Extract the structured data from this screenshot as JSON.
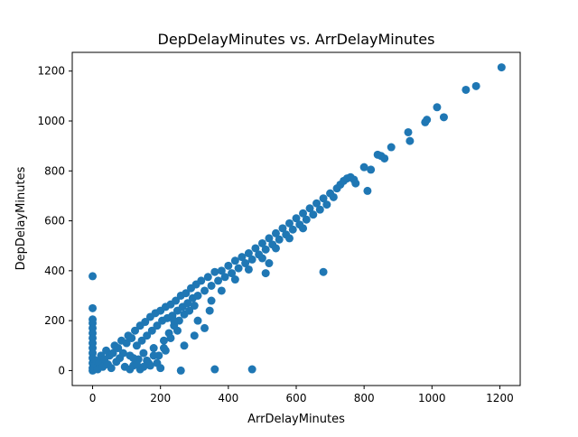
{
  "chart_data": {
    "type": "scatter",
    "title": "DepDelayMinutes vs. ArrDelayMinutes",
    "xlabel": "ArrDelayMinutes",
    "ylabel": "DepDelayMinutes",
    "xlim": [
      -60,
      1260
    ],
    "ylim": [
      -60,
      1275
    ],
    "xticks": [
      0,
      200,
      400,
      600,
      800,
      1000,
      1200
    ],
    "yticks": [
      0,
      200,
      400,
      600,
      800,
      1000,
      1200
    ],
    "xtick_labels": [
      "0",
      "200",
      "400",
      "600",
      "800",
      "1000",
      "1200"
    ],
    "ytick_labels": [
      "0",
      "200",
      "400",
      "600",
      "800",
      "1000",
      "1200"
    ],
    "grid": false,
    "marker_color": "#1f77b4",
    "series": [
      {
        "name": "",
        "points": [
          [
            0,
            378
          ],
          [
            0,
            250
          ],
          [
            0,
            205
          ],
          [
            0,
            190
          ],
          [
            0,
            170
          ],
          [
            0,
            150
          ],
          [
            0,
            130
          ],
          [
            0,
            110
          ],
          [
            0,
            90
          ],
          [
            0,
            70
          ],
          [
            0,
            50
          ],
          [
            0,
            30
          ],
          [
            0,
            10
          ],
          [
            0,
            0
          ],
          [
            5,
            20
          ],
          [
            10,
            40
          ],
          [
            15,
            5
          ],
          [
            20,
            30
          ],
          [
            25,
            60
          ],
          [
            30,
            15
          ],
          [
            35,
            45
          ],
          [
            40,
            80
          ],
          [
            45,
            25
          ],
          [
            50,
            60
          ],
          [
            55,
            10
          ],
          [
            60,
            70
          ],
          [
            65,
            100
          ],
          [
            70,
            35
          ],
          [
            75,
            90
          ],
          [
            80,
            50
          ],
          [
            85,
            120
          ],
          [
            90,
            70
          ],
          [
            95,
            15
          ],
          [
            100,
            110
          ],
          [
            105,
            140
          ],
          [
            110,
            60
          ],
          [
            115,
            130
          ],
          [
            120,
            20
          ],
          [
            125,
            160
          ],
          [
            130,
            100
          ],
          [
            135,
            45
          ],
          [
            140,
            180
          ],
          [
            145,
            120
          ],
          [
            150,
            70
          ],
          [
            155,
            195
          ],
          [
            160,
            140
          ],
          [
            165,
            30
          ],
          [
            170,
            215
          ],
          [
            175,
            160
          ],
          [
            180,
            90
          ],
          [
            185,
            230
          ],
          [
            190,
            180
          ],
          [
            195,
            60
          ],
          [
            200,
            240
          ],
          [
            205,
            200
          ],
          [
            210,
            120
          ],
          [
            215,
            255
          ],
          [
            220,
            210
          ],
          [
            225,
            150
          ],
          [
            230,
            265
          ],
          [
            235,
            220
          ],
          [
            240,
            180
          ],
          [
            245,
            280
          ],
          [
            250,
            240
          ],
          [
            255,
            200
          ],
          [
            260,
            300
          ],
          [
            265,
            255
          ],
          [
            270,
            225
          ],
          [
            275,
            310
          ],
          [
            280,
            270
          ],
          [
            285,
            240
          ],
          [
            290,
            330
          ],
          [
            295,
            290
          ],
          [
            300,
            260
          ],
          [
            305,
            345
          ],
          [
            310,
            300
          ],
          [
            320,
            360
          ],
          [
            330,
            320
          ],
          [
            340,
            375
          ],
          [
            350,
            340
          ],
          [
            360,
            395
          ],
          [
            370,
            360
          ],
          [
            380,
            400
          ],
          [
            390,
            375
          ],
          [
            400,
            420
          ],
          [
            410,
            390
          ],
          [
            420,
            440
          ],
          [
            430,
            410
          ],
          [
            440,
            455
          ],
          [
            450,
            430
          ],
          [
            460,
            470
          ],
          [
            470,
            445
          ],
          [
            480,
            490
          ],
          [
            490,
            465
          ],
          [
            500,
            510
          ],
          [
            510,
            485
          ],
          [
            520,
            530
          ],
          [
            530,
            505
          ],
          [
            540,
            550
          ],
          [
            550,
            525
          ],
          [
            560,
            570
          ],
          [
            570,
            545
          ],
          [
            580,
            590
          ],
          [
            590,
            565
          ],
          [
            600,
            610
          ],
          [
            610,
            585
          ],
          [
            620,
            630
          ],
          [
            630,
            605
          ],
          [
            640,
            650
          ],
          [
            650,
            625
          ],
          [
            660,
            670
          ],
          [
            670,
            645
          ],
          [
            680,
            690
          ],
          [
            690,
            665
          ],
          [
            700,
            710
          ],
          [
            710,
            695
          ],
          [
            720,
            730
          ],
          [
            730,
            745
          ],
          [
            740,
            760
          ],
          [
            750,
            770
          ],
          [
            760,
            775
          ],
          [
            770,
            765
          ],
          [
            775,
            750
          ],
          [
            800,
            815
          ],
          [
            810,
            720
          ],
          [
            820,
            805
          ],
          [
            840,
            865
          ],
          [
            850,
            860
          ],
          [
            860,
            850
          ],
          [
            880,
            895
          ],
          [
            930,
            955
          ],
          [
            935,
            920
          ],
          [
            980,
            995
          ],
          [
            985,
            1005
          ],
          [
            1015,
            1055
          ],
          [
            1035,
            1015
          ],
          [
            1100,
            1125
          ],
          [
            1130,
            1140
          ],
          [
            1205,
            1215
          ],
          [
            260,
            0
          ],
          [
            200,
            10
          ],
          [
            190,
            30
          ],
          [
            170,
            20
          ],
          [
            160,
            40
          ],
          [
            150,
            15
          ],
          [
            140,
            5
          ],
          [
            130,
            25
          ],
          [
            120,
            50
          ],
          [
            110,
            5
          ],
          [
            180,
            60
          ],
          [
            215,
            80
          ],
          [
            270,
            100
          ],
          [
            300,
            140
          ],
          [
            330,
            170
          ],
          [
            345,
            240
          ],
          [
            360,
            5
          ],
          [
            470,
            5
          ],
          [
            680,
            395
          ],
          [
            510,
            390
          ],
          [
            520,
            430
          ],
          [
            310,
            200
          ],
          [
            350,
            280
          ],
          [
            380,
            320
          ],
          [
            420,
            365
          ],
          [
            460,
            405
          ],
          [
            500,
            450
          ],
          [
            540,
            490
          ],
          [
            580,
            530
          ],
          [
            620,
            570
          ],
          [
            250,
            160
          ],
          [
            230,
            130
          ],
          [
            210,
            90
          ],
          [
            240,
            200
          ]
        ]
      }
    ]
  }
}
